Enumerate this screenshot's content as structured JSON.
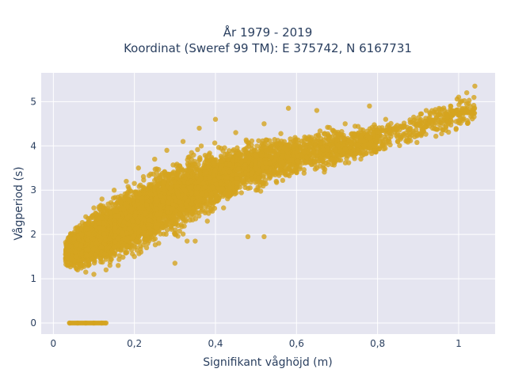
{
  "chart_data": {
    "type": "scatter",
    "title_line1": "År 1979 - 2019",
    "title_line2": "Koordinat (Sweref 99 TM): E 375742, N 6167731",
    "xlabel": "Signifikant våghöjd (m)",
    "ylabel": "Vågperiod (s)",
    "xlim": [
      -0.03,
      1.09
    ],
    "ylim": [
      -0.25,
      5.65
    ],
    "x_ticks": [
      0,
      0.2,
      0.4,
      0.6,
      0.8,
      1
    ],
    "x_tick_labels": [
      "0",
      "0,2",
      "0,4",
      "0,6",
      "0,8",
      "1"
    ],
    "y_ticks": [
      0,
      1,
      2,
      3,
      4,
      5
    ],
    "y_tick_labels": [
      "0",
      "1",
      "2",
      "3",
      "4",
      "5"
    ],
    "grid": true,
    "marker_color": "#D4A41F",
    "plot_bg": "#E5E5F0",
    "series": [
      {
        "points": [
          [
            0.04,
            0
          ],
          [
            0.06,
            0
          ],
          [
            0.08,
            0
          ],
          [
            0.1,
            0
          ],
          [
            0.12,
            0
          ],
          [
            0.13,
            0
          ],
          [
            0.03,
            1.55
          ],
          [
            0.05,
            1.3
          ],
          [
            0.05,
            1.9
          ],
          [
            0.06,
            1.2
          ],
          [
            0.07,
            2.0
          ],
          [
            0.08,
            1.15
          ],
          [
            0.08,
            2.4
          ],
          [
            0.1,
            1.1
          ],
          [
            0.1,
            2.6
          ],
          [
            0.12,
            2.8
          ],
          [
            0.13,
            1.2
          ],
          [
            0.15,
            3.0
          ],
          [
            0.16,
            1.3
          ],
          [
            0.18,
            3.2
          ],
          [
            0.2,
            1.5
          ],
          [
            0.21,
            3.5
          ],
          [
            0.23,
            1.7
          ],
          [
            0.25,
            3.7
          ],
          [
            0.26,
            1.8
          ],
          [
            0.28,
            3.9
          ],
          [
            0.3,
            2.0
          ],
          [
            0.32,
            4.1
          ],
          [
            0.33,
            1.85
          ],
          [
            0.36,
            4.4
          ],
          [
            0.38,
            2.3
          ],
          [
            0.4,
            4.6
          ],
          [
            0.42,
            2.6
          ],
          [
            0.45,
            4.3
          ],
          [
            0.5,
            3.0
          ],
          [
            0.52,
            4.5
          ],
          [
            0.55,
            3.2
          ],
          [
            0.6,
            3.4
          ],
          [
            0.62,
            4.2
          ],
          [
            0.65,
            3.5
          ],
          [
            0.7,
            3.8
          ],
          [
            0.72,
            4.5
          ],
          [
            0.75,
            3.9
          ],
          [
            0.8,
            4.2
          ],
          [
            0.82,
            4.6
          ],
          [
            0.85,
            4.1
          ],
          [
            0.9,
            4.5
          ],
          [
            0.92,
            4.8
          ],
          [
            0.95,
            4.7
          ],
          [
            0.98,
            4.9
          ],
          [
            1.0,
            5.1
          ],
          [
            1.02,
            5.2
          ],
          [
            1.04,
            5.35
          ],
          [
            0.78,
            4.9
          ],
          [
            0.65,
            4.8
          ],
          [
            0.58,
            4.85
          ],
          [
            0.48,
            1.95
          ],
          [
            0.52,
            1.95
          ],
          [
            0.3,
            1.35
          ],
          [
            0.35,
            1.85
          ]
        ]
      }
    ],
    "bands": [
      {
        "x0": 0.03,
        "x1": 0.08,
        "lo0": 1.2,
        "hi0": 2.0,
        "lo1": 1.1,
        "hi1": 2.5,
        "n": 500
      },
      {
        "x0": 0.08,
        "x1": 0.15,
        "lo0": 1.1,
        "hi0": 2.5,
        "lo1": 1.2,
        "hi1": 3.0,
        "n": 1000
      },
      {
        "x0": 0.15,
        "x1": 0.25,
        "lo0": 1.2,
        "hi0": 3.0,
        "lo1": 1.6,
        "hi1": 3.6,
        "n": 1200
      },
      {
        "x0": 0.25,
        "x1": 0.35,
        "lo0": 1.6,
        "hi0": 3.6,
        "lo1": 2.1,
        "hi1": 4.0,
        "n": 1000
      },
      {
        "x0": 0.35,
        "x1": 0.45,
        "lo0": 2.1,
        "hi0": 4.0,
        "lo1": 2.7,
        "hi1": 4.2,
        "n": 700
      },
      {
        "x0": 0.45,
        "x1": 0.6,
        "lo0": 2.7,
        "hi0": 4.2,
        "lo1": 3.2,
        "hi1": 4.4,
        "n": 700
      },
      {
        "x0": 0.6,
        "x1": 0.8,
        "lo0": 3.2,
        "hi0": 4.4,
        "lo1": 3.7,
        "hi1": 4.6,
        "n": 600
      },
      {
        "x0": 0.8,
        "x1": 1.04,
        "lo0": 3.7,
        "hi0": 4.6,
        "lo1": 4.4,
        "hi1": 5.25,
        "n": 300
      }
    ]
  }
}
